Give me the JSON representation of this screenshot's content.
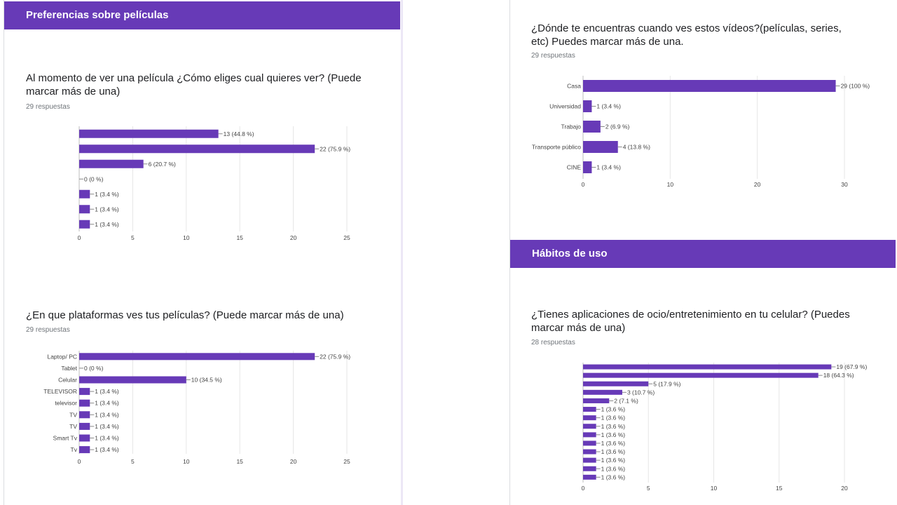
{
  "sections": [
    {
      "id": "s1",
      "title": "Preferencias sobre películas"
    },
    {
      "id": "s2",
      "title": "Hábitos de uso"
    }
  ],
  "questions": [
    {
      "id": "q1",
      "title": "Al momento de ver una película ¿Cómo eliges cual quieres ver? (Puede marcar más de una)",
      "responses": "29 respuestas"
    },
    {
      "id": "q2",
      "title": "¿En que plataformas ves tus películas? (Puede marcar más de una)",
      "responses": "29 respuestas"
    },
    {
      "id": "q3",
      "title": "¿Dónde te encuentras cuando ves estos vídeos?(películas, series, etc) Puedes marcar más de una.",
      "responses": "29 respuestas"
    },
    {
      "id": "q4",
      "title": "¿Tienes aplicaciones de ocio/entretenimiento en tu celular? (Puedes marcar más de una)",
      "responses": "28 respuestas"
    }
  ],
  "colors": {
    "accent": "#673ab7",
    "bar": "#673ab7"
  },
  "chart_data": [
    {
      "type": "bar",
      "orientation": "horizontal",
      "categories": [
        "",
        "",
        "",
        "",
        "",
        "",
        ""
      ],
      "values": [
        13,
        22,
        6,
        0,
        1,
        1,
        1
      ],
      "data_labels": [
        "13 (44.8 %)",
        "22 (75.9 %)",
        "6 (20.7 %)",
        "0 (0 %)",
        "1 (3.4 %)",
        "1 (3.4 %)",
        "1 (3.4 %)"
      ],
      "xlim": [
        0,
        25
      ],
      "xticks": [
        0,
        5,
        10,
        15,
        20,
        25
      ],
      "grid": true
    },
    {
      "type": "bar",
      "orientation": "horizontal",
      "categories": [
        "Laptop/ PC",
        "Tablet",
        "Celular",
        "TELEVISOR",
        "televisor",
        "TV",
        "TV",
        "Smart Tv",
        "Tv"
      ],
      "values": [
        22,
        0,
        10,
        1,
        1,
        1,
        1,
        1,
        1
      ],
      "data_labels": [
        "22 (75.9 %)",
        "0 (0 %)",
        "10 (34.5 %)",
        "1 (3.4 %)",
        "1 (3.4 %)",
        "1 (3.4 %)",
        "1 (3.4 %)",
        "1 (3.4 %)",
        "1 (3.4 %)"
      ],
      "xlim": [
        0,
        25
      ],
      "xticks": [
        0,
        5,
        10,
        15,
        20,
        25
      ],
      "grid": true
    },
    {
      "type": "bar",
      "orientation": "horizontal",
      "categories": [
        "Casa",
        "Universidad",
        "Trabajo",
        "Transporte público",
        "CINE"
      ],
      "values": [
        29,
        1,
        2,
        4,
        1
      ],
      "data_labels": [
        "29 (100 %)",
        "1 (3.4 %)",
        "2 (6.9 %)",
        "4 (13.8 %)",
        "1 (3.4 %)"
      ],
      "xlim": [
        0,
        30
      ],
      "xticks": [
        0,
        10,
        20,
        30
      ],
      "grid": true
    },
    {
      "type": "bar",
      "orientation": "horizontal",
      "categories": [
        "",
        "",
        "",
        "",
        "",
        "",
        "",
        "",
        "",
        "",
        "",
        "",
        "",
        ""
      ],
      "values": [
        19,
        18,
        5,
        3,
        2,
        1,
        1,
        1,
        1,
        1,
        1,
        1,
        1,
        1
      ],
      "data_labels": [
        "19 (67.9 %)",
        "18 (64.3 %)",
        "5 (17.9 %)",
        "3 (10.7 %)",
        "2 (7.1 %)",
        "1 (3.6 %)",
        "1 (3.6 %)",
        "1 (3.6 %)",
        "1 (3.6 %)",
        "1 (3.6 %)",
        "1 (3.6 %)",
        "1 (3.6 %)",
        "1 (3.6 %)",
        "1 (3.6 %)"
      ],
      "xlim": [
        0,
        20
      ],
      "xticks": [
        0,
        5,
        10,
        15,
        20
      ],
      "grid": true
    }
  ]
}
